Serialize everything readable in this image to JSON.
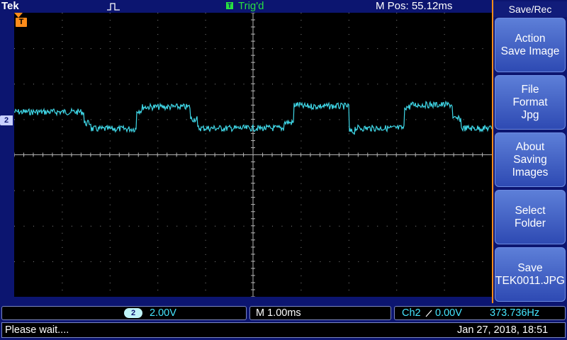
{
  "header": {
    "brand": "Tek",
    "trigger_icon_letter": "T",
    "trigger_status": "Trig'd",
    "horizontal_position": "M Pos: 55.12ms"
  },
  "scope": {
    "time_ref_label": "T",
    "channel_marker": "2",
    "trace_color": "#3fd6e6"
  },
  "side_menu": {
    "title": "Save/Rec",
    "buttons": [
      {
        "line1": "Action",
        "line2": "Save Image",
        "line3": ""
      },
      {
        "line1": "File",
        "line2": "Format",
        "line3": "Jpg"
      },
      {
        "line1": "About",
        "line2": "Saving",
        "line3": "Images"
      },
      {
        "line1": "Select",
        "line2": "Folder",
        "line3": ""
      },
      {
        "line1": "Save",
        "line2": "TEK0011.JPG",
        "line3": ""
      }
    ]
  },
  "status": {
    "channel_number": "2",
    "volts_per_div": "2.00V",
    "timebase": "M 1.00ms",
    "trigger_source": "Ch2",
    "trigger_slope_icon": "rising-edge-icon",
    "trigger_level": "0.00V",
    "frequency": "373.736Hz",
    "message": "Please wait....",
    "datetime": "Jan 27, 2018, 18:51"
  }
}
